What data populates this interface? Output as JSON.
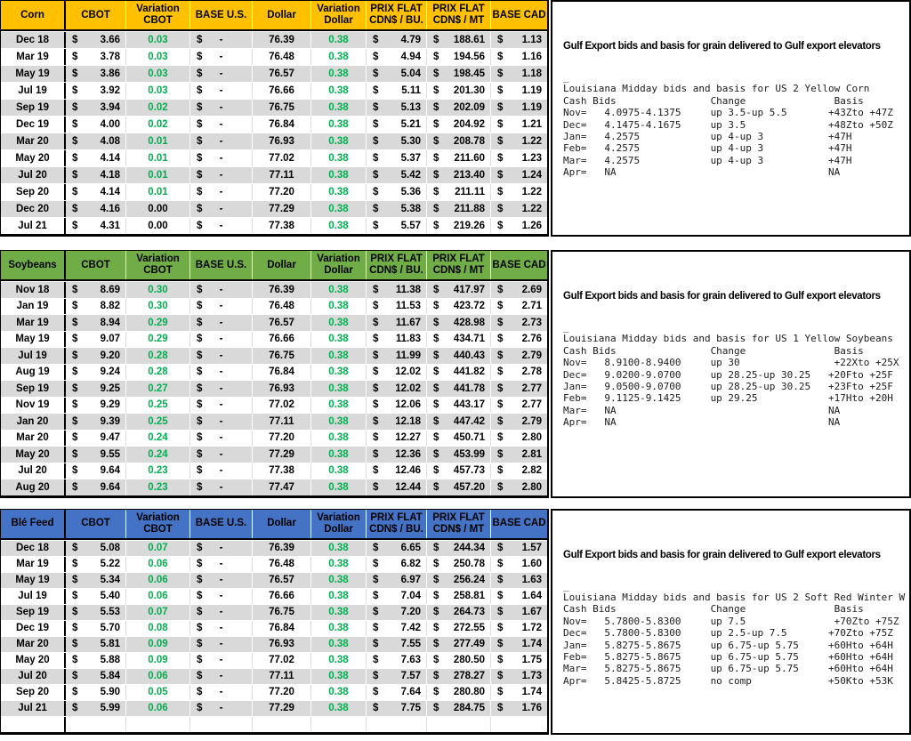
{
  "currency": "$",
  "columns": [
    "",
    "CBOT",
    "Variation\nCBOT",
    "BASE U.S.",
    "Dollar",
    "Variation\nDollar",
    "PRIX FLAT\nCDN$ / BU.",
    "PRIX FLAT\nCDN$ / MT",
    "BASE CAD"
  ],
  "colors": {
    "green_text": "#00B050",
    "stripe": "#D9D9D9"
  },
  "sections": [
    {
      "commodity": "Corn",
      "header_color": "#FFC000",
      "rows": [
        [
          "Dec 18",
          "3.66",
          "0.03",
          "-",
          "76.39",
          "0.38",
          "4.79",
          "188.61",
          "1.13"
        ],
        [
          "Mar 19",
          "3.78",
          "0.03",
          "-",
          "76.48",
          "0.38",
          "4.94",
          "194.56",
          "1.16"
        ],
        [
          "May 19",
          "3.86",
          "0.03",
          "-",
          "76.57",
          "0.38",
          "5.04",
          "198.45",
          "1.18"
        ],
        [
          "Jul 19",
          "3.92",
          "0.03",
          "-",
          "76.66",
          "0.38",
          "5.11",
          "201.30",
          "1.19"
        ],
        [
          "Sep 19",
          "3.94",
          "0.02",
          "-",
          "76.75",
          "0.38",
          "5.13",
          "202.09",
          "1.19"
        ],
        [
          "Dec 19",
          "4.00",
          "0.02",
          "-",
          "76.84",
          "0.38",
          "5.21",
          "204.92",
          "1.21"
        ],
        [
          "Mar 20",
          "4.08",
          "0.01",
          "-",
          "76.93",
          "0.38",
          "5.30",
          "208.78",
          "1.22"
        ],
        [
          "May 20",
          "4.14",
          "0.01",
          "-",
          "77.02",
          "0.38",
          "5.37",
          "211.60",
          "1.23"
        ],
        [
          "Jul 20",
          "4.18",
          "0.01",
          "-",
          "77.11",
          "0.38",
          "5.42",
          "213.40",
          "1.24"
        ],
        [
          "Sep 20",
          "4.14",
          "0.01",
          "-",
          "77.20",
          "0.38",
          "5.36",
          "211.11",
          "1.22"
        ],
        [
          "Dec 20",
          "4.16",
          "0.00",
          "-",
          "77.29",
          "0.38",
          "5.38",
          "211.88",
          "1.22"
        ],
        [
          "Jul 21",
          "4.31",
          "0.00",
          "-",
          "77.38",
          "0.38",
          "5.57",
          "219.26",
          "1.26"
        ]
      ],
      "panel": {
        "title": "Gulf Export bids and basis for grain delivered to Gulf export elevators",
        "mono": "_\nLouisiana Midday bids and basis for US 2 Yellow Corn\nCash Bids                Change               Basis\nNov=   4.0975-4.1375     up 3.5-up 5.5       +43Zto +47Z\nDec=   4.1475-4.1675     up 3.5              +48Zto +50Z\nJan=   4.2575            up 4-up 3           +47H\nFeb=   4.2575            up 4-up 3           +47H\nMar=   4.2575            up 4-up 3           +47H\nApr=   NA                                    NA"
      }
    },
    {
      "commodity": "Soybeans",
      "header_color": "#70AD47",
      "rows": [
        [
          "Nov 18",
          "8.69",
          "0.30",
          "-",
          "76.39",
          "0.38",
          "11.38",
          "417.97",
          "2.69"
        ],
        [
          "Jan 19",
          "8.82",
          "0.30",
          "-",
          "76.48",
          "0.38",
          "11.53",
          "423.72",
          "2.71"
        ],
        [
          "Mar 19",
          "8.94",
          "0.29",
          "-",
          "76.57",
          "0.38",
          "11.67",
          "428.98",
          "2.73"
        ],
        [
          "May 19",
          "9.07",
          "0.29",
          "-",
          "76.66",
          "0.38",
          "11.83",
          "434.71",
          "2.76"
        ],
        [
          "Jul 19",
          "9.20",
          "0.28",
          "-",
          "76.75",
          "0.38",
          "11.99",
          "440.43",
          "2.79"
        ],
        [
          "Aug 19",
          "9.24",
          "0.28",
          "-",
          "76.84",
          "0.38",
          "12.02",
          "441.82",
          "2.78"
        ],
        [
          "Sep 19",
          "9.25",
          "0.27",
          "-",
          "76.93",
          "0.38",
          "12.02",
          "441.78",
          "2.77"
        ],
        [
          "Nov 19",
          "9.29",
          "0.25",
          "-",
          "77.02",
          "0.38",
          "12.06",
          "443.17",
          "2.77"
        ],
        [
          "Jan 20",
          "9.39",
          "0.25",
          "-",
          "77.11",
          "0.38",
          "12.18",
          "447.42",
          "2.79"
        ],
        [
          "Mar 20",
          "9.47",
          "0.24",
          "-",
          "77.20",
          "0.38",
          "12.27",
          "450.71",
          "2.80"
        ],
        [
          "May 20",
          "9.55",
          "0.24",
          "-",
          "77.29",
          "0.38",
          "12.36",
          "453.99",
          "2.81"
        ],
        [
          "Jul 20",
          "9.64",
          "0.23",
          "-",
          "77.38",
          "0.38",
          "12.46",
          "457.73",
          "2.82"
        ],
        [
          "Aug 20",
          "9.64",
          "0.23",
          "-",
          "77.47",
          "0.38",
          "12.44",
          "457.20",
          "2.80"
        ]
      ],
      "panel": {
        "title": "Gulf Export bids and basis for grain delivered to Gulf export elevators",
        "mono": "_\nLouisiana Midday bids and basis for US 1 Yellow Soybeans\nCash Bids                Change               Basis\nNov=   8.9100-8.9400     up 30                +22Xto +25X\nDec=   9.0200-9.0700     up 28.25-up 30.25   +20Fto +25F\nJan=   9.0500-9.0700     up 28.25-up 30.25   +23Fto +25F\nFeb=   9.1125-9.1425     up 29.25            +17Hto +20H\nMar=   NA                                    NA\nApr=   NA                                    NA"
      }
    },
    {
      "commodity": "Blé Feed",
      "header_color": "#4472C4",
      "rows": [
        [
          "Dec 18",
          "5.08",
          "0.07",
          "-",
          "76.39",
          "0.38",
          "6.65",
          "244.34",
          "1.57"
        ],
        [
          "Mar 19",
          "5.22",
          "0.06",
          "-",
          "76.48",
          "0.38",
          "6.82",
          "250.78",
          "1.60"
        ],
        [
          "May 19",
          "5.34",
          "0.06",
          "-",
          "76.57",
          "0.38",
          "6.97",
          "256.24",
          "1.63"
        ],
        [
          "Jul 19",
          "5.40",
          "0.06",
          "-",
          "76.66",
          "0.38",
          "7.04",
          "258.81",
          "1.64"
        ],
        [
          "Sep 19",
          "5.53",
          "0.07",
          "-",
          "76.75",
          "0.38",
          "7.20",
          "264.73",
          "1.67"
        ],
        [
          "Dec 19",
          "5.70",
          "0.08",
          "-",
          "76.84",
          "0.38",
          "7.42",
          "272.55",
          "1.72"
        ],
        [
          "Mar 20",
          "5.81",
          "0.09",
          "-",
          "76.93",
          "0.38",
          "7.55",
          "277.49",
          "1.74"
        ],
        [
          "May 20",
          "5.88",
          "0.09",
          "-",
          "77.02",
          "0.38",
          "7.63",
          "280.50",
          "1.75"
        ],
        [
          "Jul 20",
          "5.84",
          "0.06",
          "-",
          "77.11",
          "0.38",
          "7.57",
          "278.27",
          "1.73"
        ],
        [
          "Sep 20",
          "5.90",
          "0.05",
          "-",
          "77.20",
          "0.38",
          "7.64",
          "280.80",
          "1.74"
        ],
        [
          "Jul 21",
          "5.99",
          "0.06",
          "-",
          "77.29",
          "0.38",
          "7.75",
          "284.75",
          "1.76"
        ],
        [
          "",
          "",
          "",
          "",
          "",
          "",
          "",
          "",
          ""
        ]
      ],
      "panel": {
        "title": "Gulf Export bids and basis for grain delivered to Gulf export elevators",
        "mono": "_\nLouisiana Midday bids and basis for US 2 Soft Red Winter W\nCash Bids                Change               Basis\nNov=   5.7800-5.8300     up 7.5               +70Zto +75Z\nDec=   5.7800-5.8300     up 2.5-up 7.5       +70Zto +75Z\nJan=   5.8275-5.8675     up 6.75-up 5.75     +60Hto +64H\nFeb=   5.8275-5.8675     up 6.75-up 5.75     +60Hto +64H\nMar=   5.8275-5.8675     up 6.75-up 5.75     +60Hto +64H\nApr=   5.8425-5.8725     no comp             +50Kto +53K"
      }
    }
  ]
}
